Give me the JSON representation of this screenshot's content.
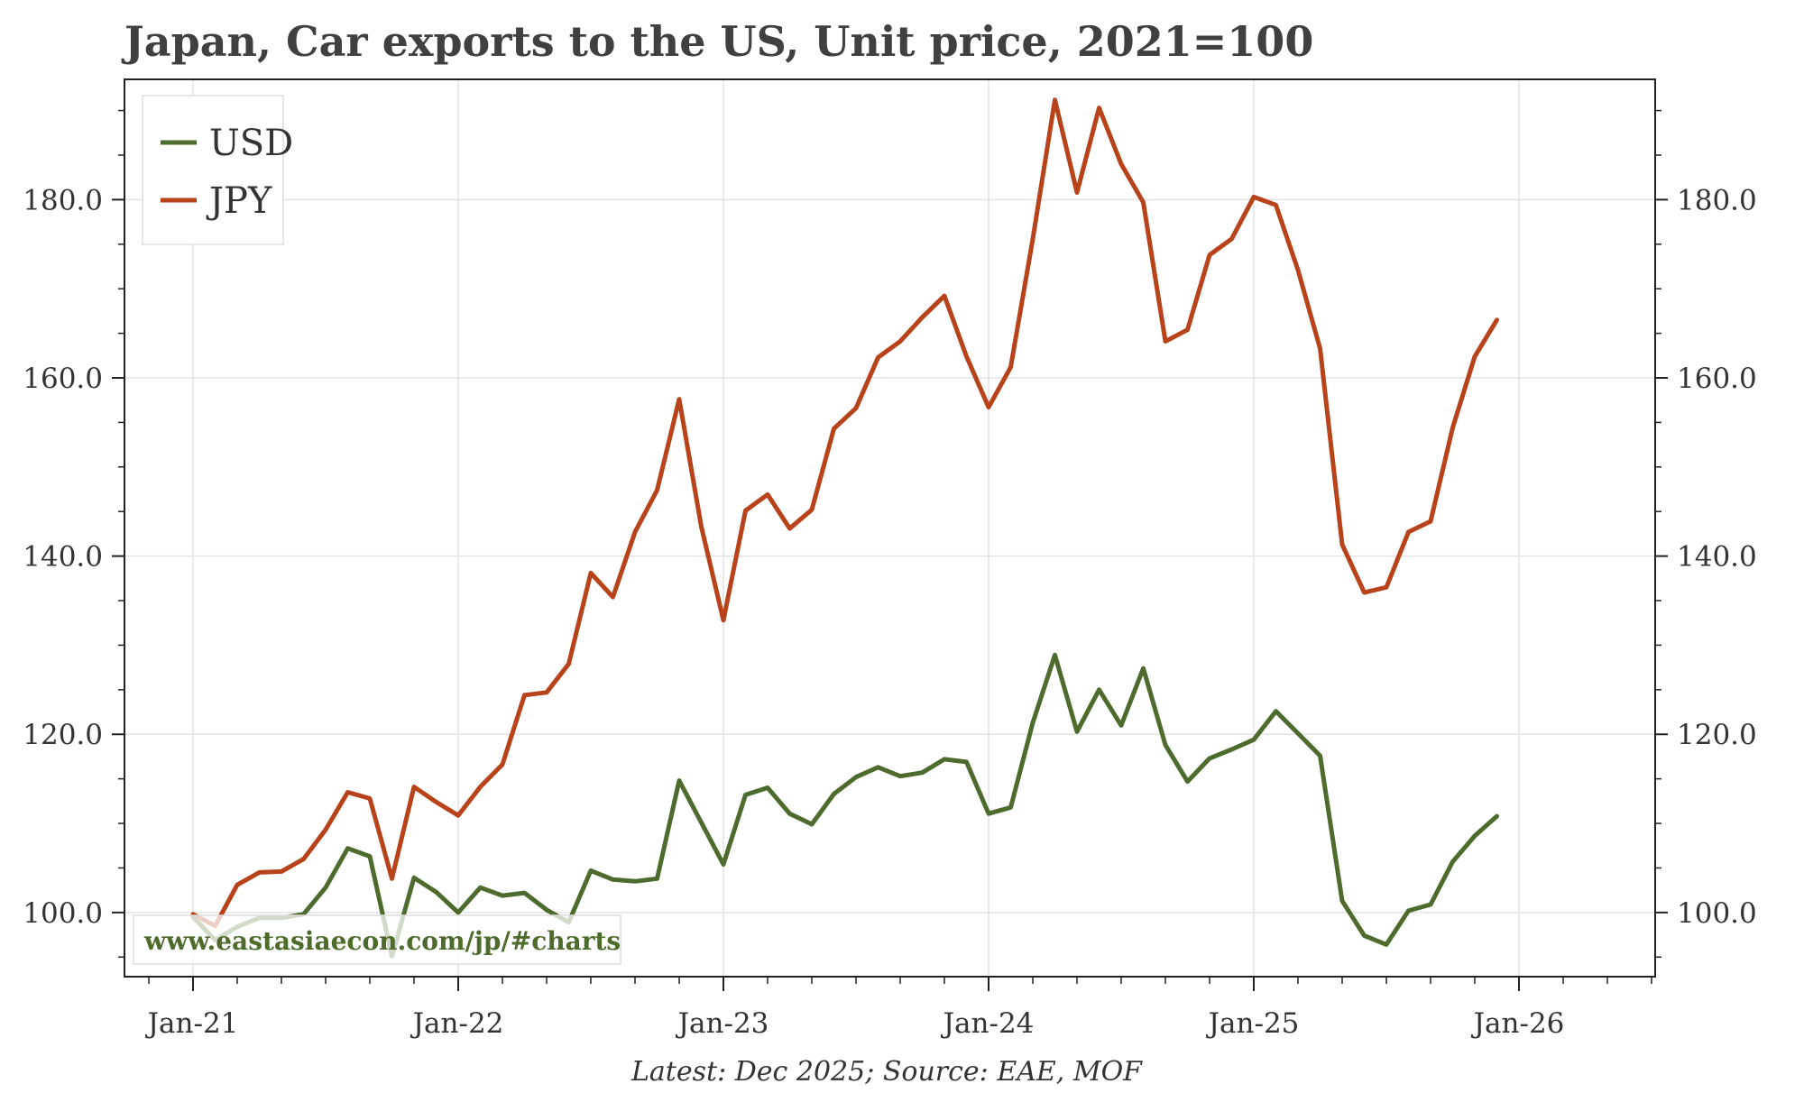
{
  "chart_data": {
    "type": "line",
    "title": "Japan, Car exports to the US, Unit price, 2021=100",
    "footer": "Latest: Dec 2025; Source: EAE, MOF",
    "watermark": "www.eastasiaecon.com/jp/#charts",
    "x_start": "Jan-21",
    "x_ticks": [
      "Jan-21",
      "Jan-22",
      "Jan-23",
      "Jan-24",
      "Jan-25",
      "Jan-26"
    ],
    "y_ticks": [
      "100.0",
      "120.0",
      "140.0",
      "160.0",
      "180.0"
    ],
    "ylim": [
      92.8,
      193.5
    ],
    "grid": true,
    "legend_position": "top-left",
    "series": [
      {
        "name": "USD",
        "color": "#4e6b2e",
        "values": [
          99.5,
          96.9,
          98.4,
          99.4,
          99.4,
          99.8,
          102.8,
          107.2,
          106.3,
          95.1,
          103.9,
          102.3,
          100.0,
          102.8,
          101.9,
          102.2,
          100.3,
          98.9,
          104.7,
          103.7,
          103.5,
          103.8,
          114.8,
          110.1,
          105.4,
          113.2,
          114.0,
          111.1,
          109.9,
          113.3,
          115.2,
          116.3,
          115.3,
          115.7,
          117.2,
          116.9,
          111.1,
          111.8,
          121.3,
          128.9,
          120.3,
          125.0,
          121.0,
          127.4,
          118.8,
          114.7,
          117.3,
          118.3,
          119.4,
          122.6,
          120.1,
          117.6,
          101.3,
          97.4,
          96.4,
          100.2,
          100.9,
          105.7,
          108.6,
          110.8
        ]
      },
      {
        "name": "JPY",
        "color": "#b8421a",
        "values": [
          99.8,
          98.5,
          103.1,
          104.5,
          104.6,
          106.0,
          109.3,
          113.5,
          112.8,
          103.8,
          114.1,
          112.4,
          110.9,
          114.1,
          116.6,
          124.4,
          124.7,
          127.9,
          138.1,
          135.4,
          142.7,
          147.4,
          157.6,
          143.3,
          132.8,
          145.1,
          146.9,
          143.1,
          145.2,
          154.3,
          156.6,
          162.3,
          164.1,
          166.8,
          169.2,
          162.4,
          156.7,
          161.2,
          175.6,
          191.2,
          180.8,
          190.3,
          184.0,
          179.7,
          164.1,
          165.4,
          173.8,
          175.6,
          180.3,
          179.4,
          172.1,
          163.3,
          141.3,
          135.9,
          136.5,
          142.7,
          143.9,
          154.4,
          162.4,
          166.5
        ]
      }
    ]
  }
}
